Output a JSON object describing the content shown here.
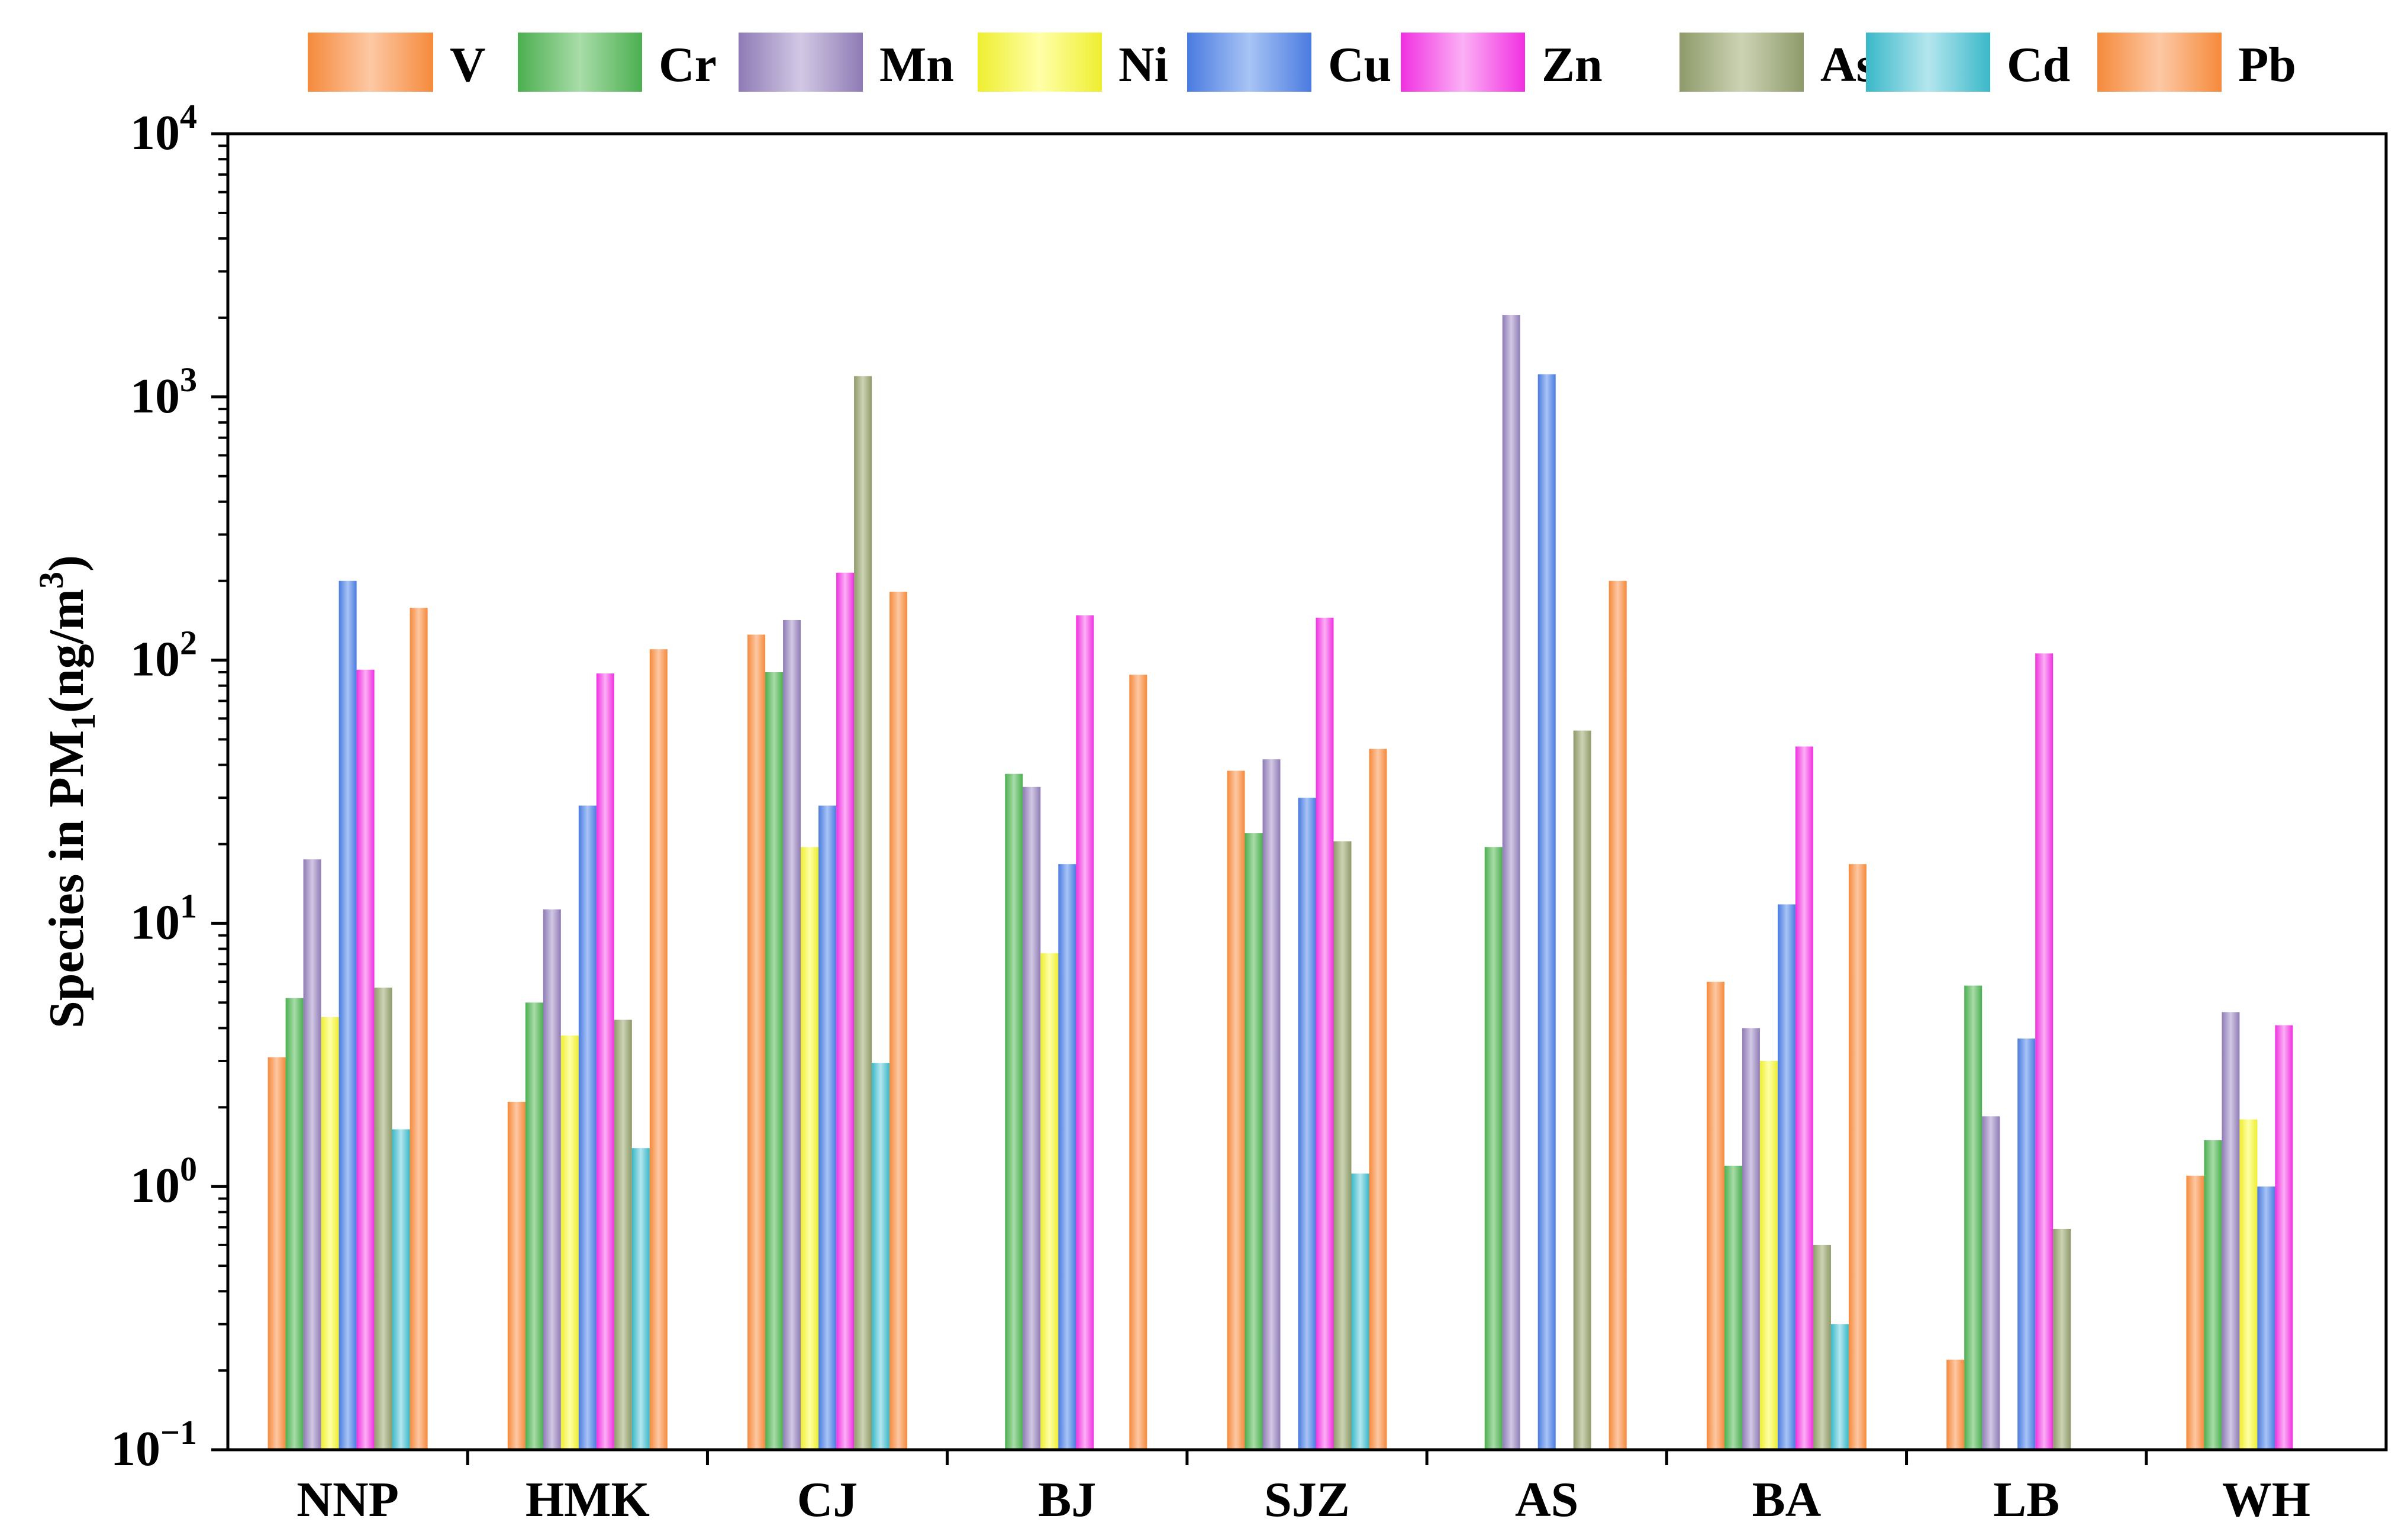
{
  "chart_data": {
    "type": "bar",
    "title": "",
    "xlabel": "",
    "ylabel": {
      "prefix": "Species in PM",
      "subscript": "1",
      "unit_open": "(ng/m",
      "superscript": "3",
      "unit_close": ")"
    },
    "yscale": "log",
    "ylim": [
      0.1,
      10000
    ],
    "yticks": [
      {
        "base": "10",
        "exp": "−1"
      },
      {
        "base": "10",
        "exp": "0"
      },
      {
        "base": "10",
        "exp": "1"
      },
      {
        "base": "10",
        "exp": "2"
      },
      {
        "base": "10",
        "exp": "3"
      },
      {
        "base": "10",
        "exp": "4"
      }
    ],
    "legend_position": "top",
    "categories": [
      "NNP",
      "HMK",
      "CJ",
      "BJ",
      "SJZ",
      "AS",
      "BA",
      "LB",
      "WH"
    ],
    "series": [
      {
        "name": "V",
        "color": "#F58A3C",
        "light": "#FDC8A4",
        "values": [
          3.1,
          2.1,
          125,
          null,
          38,
          null,
          6.0,
          0.22,
          1.1
        ]
      },
      {
        "name": "Cr",
        "color": "#4CAF50",
        "light": "#A8DCA8",
        "values": [
          5.2,
          5.0,
          90,
          37,
          22,
          19.5,
          1.2,
          5.8,
          1.5
        ]
      },
      {
        "name": "Mn",
        "color": "#8E7BB5",
        "light": "#D2C8E4",
        "values": [
          17.5,
          11.3,
          142,
          33,
          42,
          2050,
          4.0,
          1.85,
          4.6
        ]
      },
      {
        "name": "Ni",
        "color": "#EEEE30",
        "light": "#FFFFA8",
        "values": [
          4.4,
          3.75,
          19.5,
          7.7,
          null,
          null,
          3.0,
          null,
          1.8
        ]
      },
      {
        "name": "Cu",
        "color": "#4A7BE0",
        "light": "#A8C4F5",
        "values": [
          200,
          28,
          28,
          16.8,
          30,
          1220,
          11.8,
          3.65,
          1.0
        ]
      },
      {
        "name": "Zn",
        "color": "#F030E0",
        "light": "#FBB0F5",
        "values": [
          92,
          89,
          215,
          148,
          145,
          null,
          47,
          106,
          4.1
        ]
      },
      {
        "name": "As",
        "color": "#8E9A6A",
        "light": "#CCD3B4",
        "values": [
          5.7,
          4.3,
          1200,
          null,
          20.5,
          54,
          0.6,
          0.69,
          null
        ]
      },
      {
        "name": "Cd",
        "color": "#3AB8C8",
        "light": "#B4E6EE",
        "values": [
          1.65,
          1.4,
          2.95,
          null,
          1.12,
          null,
          0.3,
          null,
          null
        ]
      },
      {
        "name": "Pb",
        "color": "#F58A3C",
        "light": "#FDC8A4",
        "values": [
          158,
          110,
          182,
          88,
          46,
          200,
          16.8,
          null,
          null
        ]
      }
    ]
  }
}
